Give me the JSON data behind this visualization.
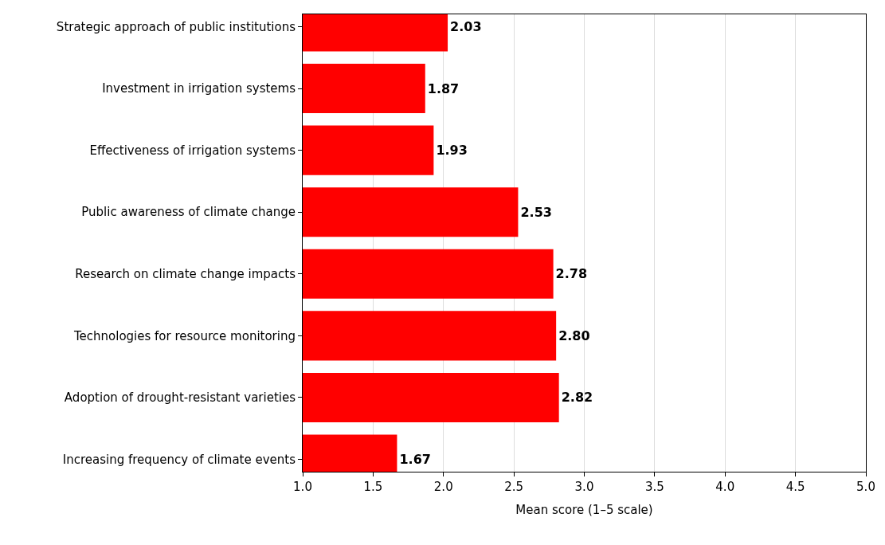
{
  "chart_data": {
    "type": "bar",
    "orientation": "horizontal",
    "xlabel": "Mean score (1–5 scale)",
    "categories": [
      "Strategic approach of public institutions",
      "Investment in irrigation systems",
      "Effectiveness of irrigation systems",
      "Public awareness of climate change",
      "Research on climate change impacts",
      "Technologies for resource monitoring",
      "Adoption of drought-resistant varieties",
      "Increasing frequency of climate events"
    ],
    "values": [
      2.03,
      1.87,
      1.93,
      2.53,
      2.78,
      2.8,
      2.82,
      1.67
    ],
    "value_labels": [
      "2.03",
      "1.87",
      "1.93",
      "2.53",
      "2.78",
      "2.80",
      "2.82",
      "1.67"
    ],
    "color": "#ff0000",
    "xlim": [
      1,
      5
    ],
    "xticks": [
      {
        "value": 1,
        "label": "1.0"
      },
      {
        "value": 1.5,
        "label": "1.5"
      },
      {
        "value": 2,
        "label": "2.0"
      },
      {
        "value": 2.5,
        "label": "2.5"
      },
      {
        "value": 3,
        "label": "3.0"
      },
      {
        "value": 3.5,
        "label": "3.5"
      },
      {
        "value": 4,
        "label": "4.0"
      },
      {
        "value": 4.5,
        "label": "4.5"
      },
      {
        "value": 5,
        "label": "5.0"
      }
    ],
    "grid": "x"
  }
}
